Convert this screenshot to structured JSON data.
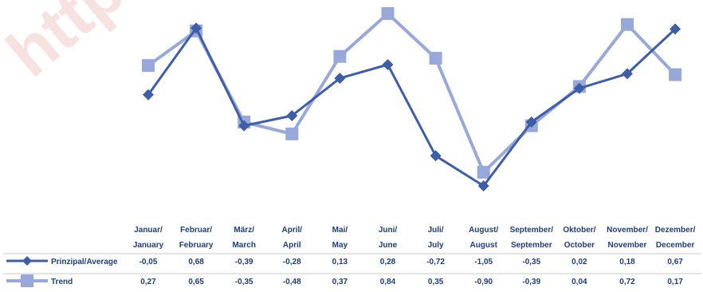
{
  "watermark": {
    "text": "https"
  },
  "colors": {
    "series_dark": "#3e5ea8",
    "series_light": "#98a9d9",
    "table_text": "#1f3d7a",
    "table_rule": "#c9c9c9",
    "watermark": "#f6dcdc"
  },
  "chart_data": {
    "type": "line",
    "categories": [
      [
        "Januar/",
        "January"
      ],
      [
        "Februar/",
        "February"
      ],
      [
        "März/",
        "March"
      ],
      [
        "April/",
        "April"
      ],
      [
        "Mai/",
        "May"
      ],
      [
        "Juni/",
        "June"
      ],
      [
        "Juli/",
        "July"
      ],
      [
        "August/",
        "August"
      ],
      [
        "September/",
        "September"
      ],
      [
        "Oktober/",
        "October"
      ],
      [
        "November/",
        "November"
      ],
      [
        "Dezember/",
        "December"
      ]
    ],
    "series": [
      {
        "name": "Prinzipal/Average",
        "marker": "diamond",
        "color": "#3e5ea8",
        "values": [
          -0.05,
          0.68,
          -0.39,
          -0.28,
          0.13,
          0.28,
          -0.72,
          -1.05,
          -0.35,
          0.02,
          0.18,
          0.67
        ],
        "value_labels": [
          "-0,05",
          "0,68",
          "-0,39",
          "-0,28",
          "0,13",
          "0,28",
          "-0,72",
          "-1,05",
          "-0,35",
          "0,02",
          "0,18",
          "0,67"
        ]
      },
      {
        "name": "Trend",
        "marker": "square",
        "color": "#98a9d9",
        "values": [
          0.27,
          0.65,
          -0.35,
          -0.48,
          0.37,
          0.84,
          0.35,
          -0.9,
          -0.39,
          0.04,
          0.72,
          0.17
        ],
        "value_labels": [
          "0,27",
          "0,65",
          "-0,35",
          "-0,48",
          "0,37",
          "0,84",
          "0,35",
          "-0,90",
          "-0,39",
          "0,04",
          "0,72",
          "0,17"
        ]
      }
    ],
    "grid": false,
    "legend": "table-below"
  }
}
